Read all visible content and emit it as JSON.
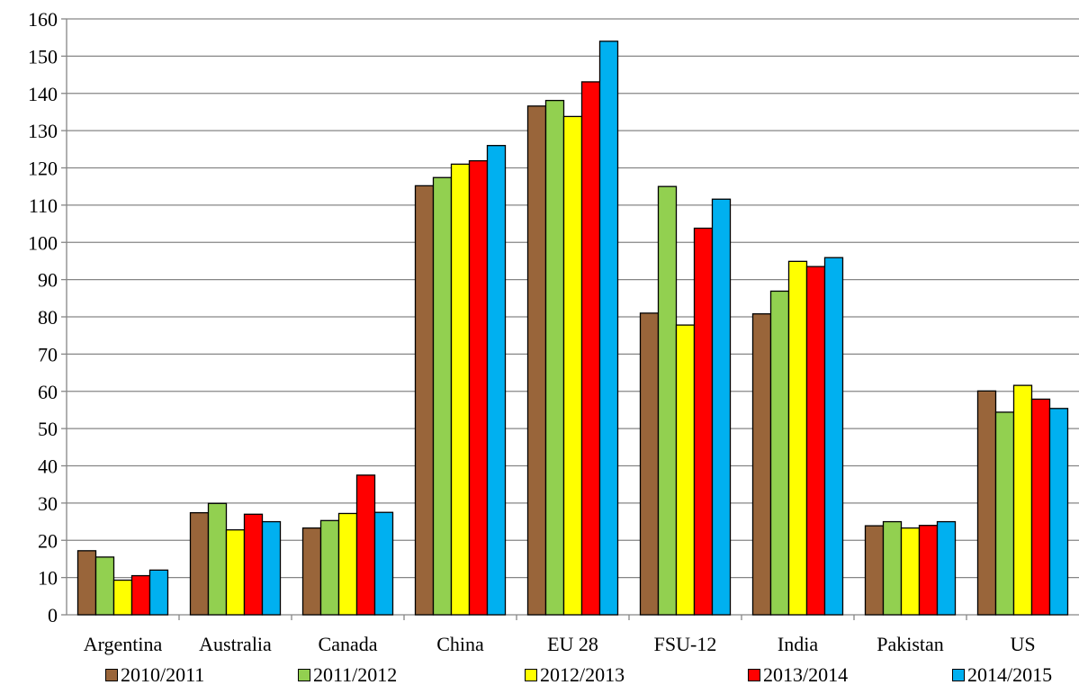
{
  "chart_data": {
    "type": "bar",
    "categories": [
      "Argentina",
      "Australia",
      "Canada",
      "China",
      "EU 28",
      "FSU-12",
      "India",
      "Pakistan",
      "US"
    ],
    "series": [
      {
        "name": "2010/2011",
        "color": "#99653A",
        "values": [
          17.2,
          27.4,
          23.3,
          115.2,
          136.6,
          81.0,
          80.8,
          23.9,
          60.1
        ]
      },
      {
        "name": "2011/2012",
        "color": "#92D050",
        "values": [
          15.5,
          29.9,
          25.3,
          117.4,
          138.1,
          115.0,
          86.9,
          25.0,
          54.4
        ]
      },
      {
        "name": "2012/2013",
        "color": "#FFFF00",
        "values": [
          9.3,
          22.8,
          27.2,
          121.0,
          133.8,
          77.8,
          94.9,
          23.3,
          61.6
        ]
      },
      {
        "name": "2013/2014",
        "color": "#FF0000",
        "values": [
          10.5,
          27.0,
          37.5,
          121.9,
          143.1,
          103.8,
          93.5,
          24.0,
          57.9
        ]
      },
      {
        "name": "2014/2015",
        "color": "#00B0F0",
        "values": [
          12.0,
          25.0,
          27.5,
          126.0,
          154.0,
          111.6,
          95.9,
          25.0,
          55.4
        ]
      }
    ],
    "ylim": [
      0,
      160
    ],
    "yticks": [
      "0",
      "10",
      "20",
      "30",
      "40",
      "50",
      "60",
      "70",
      "80",
      "90",
      "100",
      "110",
      "120",
      "130",
      "140",
      "150",
      "160"
    ],
    "grid": true,
    "legend_position": "bottom"
  }
}
